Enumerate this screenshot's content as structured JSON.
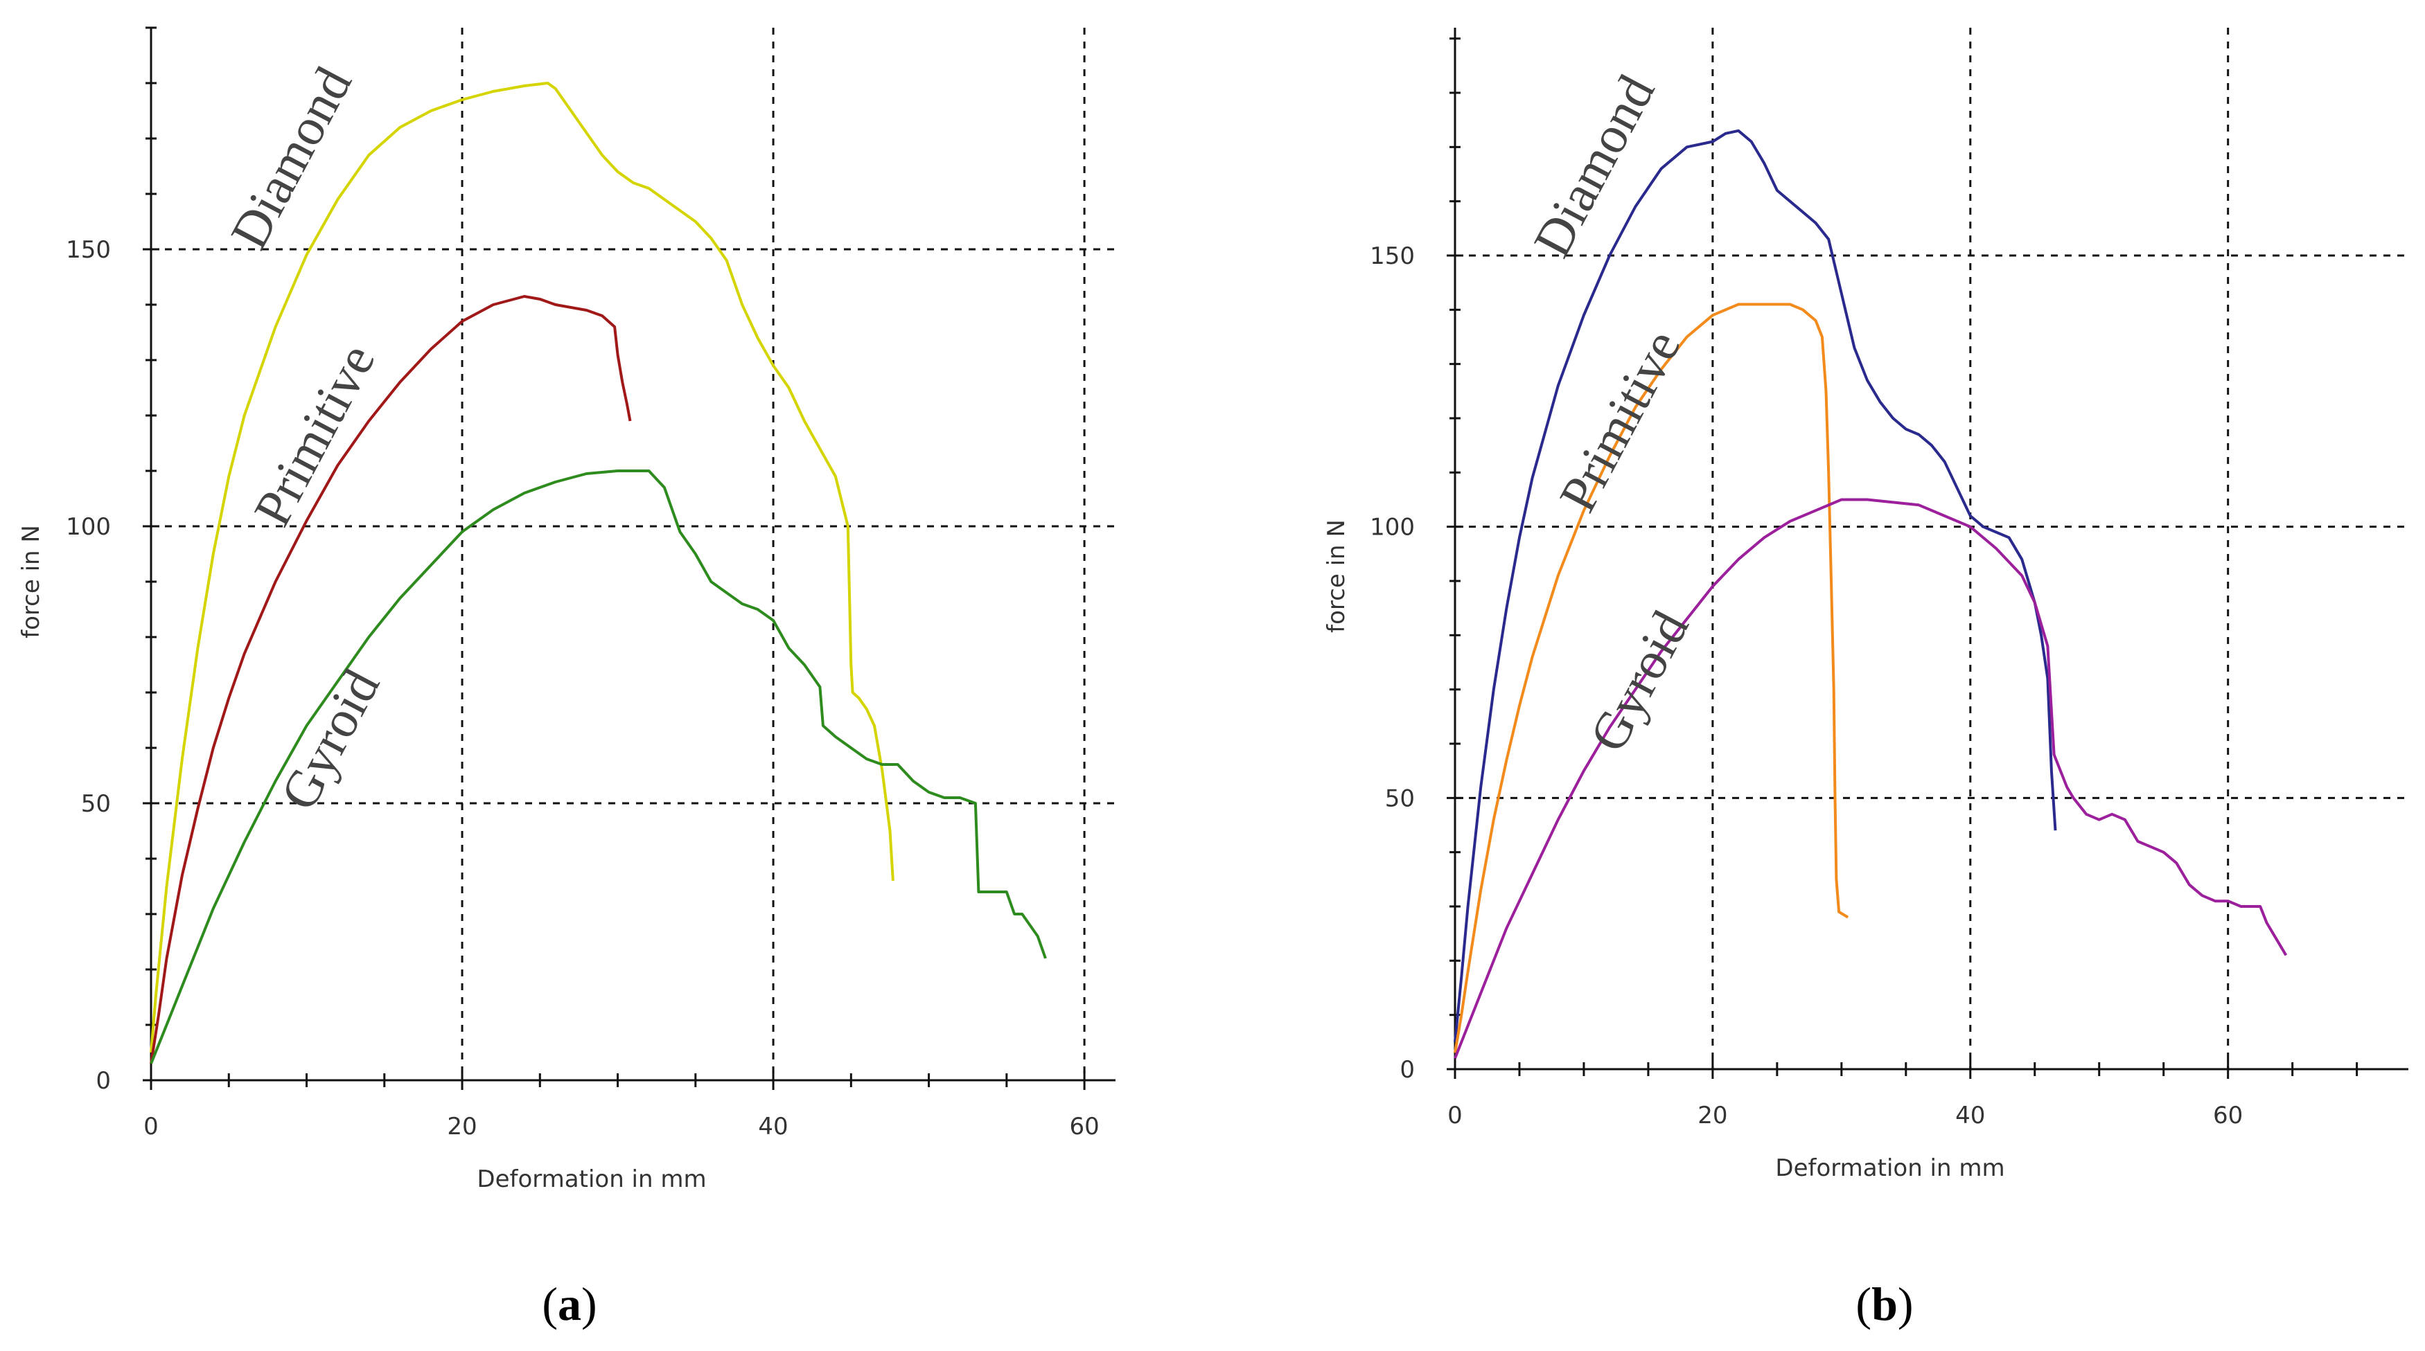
{
  "chart_data": [
    {
      "type": "line",
      "panel": "a",
      "caption_open": "(",
      "caption_letter": "a",
      "caption_close": ")",
      "xlabel": "Deformation in mm",
      "ylabel": "force in N",
      "xlim": [
        0,
        62
      ],
      "ylim": [
        0,
        190
      ],
      "xticks": [
        0,
        20,
        40,
        60
      ],
      "yticks": [
        0,
        50,
        100,
        150
      ],
      "grid": true,
      "series": [
        {
          "name": "Diamond",
          "color": "#d4d400",
          "x": [
            0,
            0.3,
            1,
            2,
            3,
            4,
            5,
            6,
            8,
            10,
            12,
            14,
            16,
            18,
            20,
            22,
            24,
            25.5,
            26,
            27,
            28,
            29,
            30,
            31,
            32,
            33,
            34,
            35,
            36,
            37,
            38,
            39,
            40,
            41,
            42,
            43,
            44,
            44.8,
            45,
            45.1,
            45.5,
            46,
            46.5,
            47,
            47.5,
            47.7
          ],
          "y": [
            5,
            15,
            35,
            58,
            78,
            95,
            109,
            120,
            136,
            149,
            159,
            167,
            172,
            175,
            177,
            178.5,
            179.5,
            180,
            179,
            175,
            171,
            167,
            164,
            162,
            161,
            159,
            157,
            155,
            152,
            148,
            140,
            134,
            129,
            125,
            119,
            114,
            109,
            100,
            75,
            70,
            69,
            67,
            64,
            56,
            45,
            36
          ],
          "label_x": 10,
          "label_y": 165
        },
        {
          "name": "Primitive",
          "color": "#a01818",
          "x": [
            0,
            0.5,
            1,
            2,
            3,
            4,
            5,
            6,
            8,
            10,
            12,
            14,
            16,
            18,
            20,
            22,
            24,
            25,
            26,
            27,
            28,
            29,
            29.8,
            30,
            30.3,
            30.6,
            30.8
          ],
          "y": [
            3,
            12,
            22,
            37,
            49,
            60,
            69,
            77,
            90,
            101,
            111,
            119,
            126,
            132,
            137,
            140,
            141.5,
            141,
            140,
            139.5,
            139,
            138,
            136,
            131,
            126,
            122,
            119
          ],
          "label_x": 11.5,
          "label_y": 115
        },
        {
          "name": "Gyroid",
          "color": "#2e8b1e",
          "x": [
            0,
            1,
            2,
            3,
            4,
            5,
            6,
            8,
            10,
            12,
            14,
            16,
            18,
            20,
            22,
            24,
            26,
            28,
            30,
            32,
            33,
            34,
            35,
            36,
            37,
            38,
            39,
            40,
            41,
            42,
            43,
            43.2,
            44,
            45,
            46,
            47,
            48,
            49,
            50,
            51,
            52,
            53,
            53.2,
            53.5,
            54,
            55,
            55.5,
            56,
            56.5,
            57,
            57.5
          ],
          "y": [
            3,
            10,
            17,
            24,
            31,
            37,
            43,
            54,
            64,
            72,
            80,
            87,
            93,
            99,
            103,
            106,
            108,
            109.5,
            110,
            110,
            107,
            99,
            95,
            90,
            88,
            86,
            85,
            83,
            78,
            75,
            71,
            64,
            62,
            60,
            58,
            57,
            57,
            54,
            52,
            51,
            51,
            50,
            34,
            34,
            34,
            34,
            30,
            30,
            28,
            26,
            22
          ],
          "label_x": 12.5,
          "label_y": 60
        }
      ]
    },
    {
      "type": "line",
      "panel": "b",
      "caption_open": "(",
      "caption_letter": "b",
      "caption_close": ")",
      "xlabel": "Deformation in mm",
      "ylabel": "force in N",
      "xlim": [
        0,
        74
      ],
      "ylim": [
        0,
        192
      ],
      "xticks": [
        0,
        20,
        40,
        60
      ],
      "yticks": [
        0,
        50,
        100,
        150
      ],
      "grid": true,
      "series": [
        {
          "name": "Diamond",
          "color": "#2a2a8e",
          "x": [
            0,
            0.5,
            1,
            2,
            3,
            4,
            5,
            6,
            8,
            10,
            12,
            14,
            16,
            18,
            20,
            21,
            22,
            23,
            24,
            25,
            26,
            27,
            28,
            29,
            30,
            31,
            32,
            33,
            34,
            35,
            36,
            37,
            38,
            39,
            40,
            41,
            42,
            43,
            44,
            45,
            45.5,
            46,
            46.3,
            46.6
          ],
          "y": [
            5,
            17,
            30,
            52,
            70,
            85,
            98,
            109,
            126,
            139,
            150,
            159,
            166,
            170,
            171,
            172.5,
            173,
            171,
            167,
            162,
            160,
            158,
            156,
            153,
            143,
            133,
            127,
            123,
            120,
            118,
            117,
            115,
            112,
            107,
            102,
            100,
            99,
            98,
            94,
            86,
            80,
            72,
            55,
            44
          ],
          "label_x": 12,
          "label_y": 165
        },
        {
          "name": "Primitive",
          "color": "#f28a1c",
          "x": [
            0,
            0.5,
            1,
            2,
            3,
            4,
            5,
            6,
            8,
            10,
            12,
            14,
            16,
            18,
            20,
            22,
            24,
            26,
            27,
            28,
            28.5,
            28.8,
            29,
            29.2,
            29.4,
            29.5,
            29.6,
            29.8,
            30.5
          ],
          "y": [
            3,
            10,
            18,
            33,
            46,
            57,
            67,
            76,
            91,
            103,
            113,
            122,
            129,
            135,
            139,
            141,
            141,
            141,
            140,
            138,
            135,
            125,
            110,
            90,
            70,
            50,
            35,
            29,
            28
          ],
          "label_x": 14,
          "label_y": 118
        },
        {
          "name": "Gyroid",
          "color": "#9c1f9c",
          "x": [
            0,
            1,
            2,
            3,
            4,
            5,
            6,
            8,
            10,
            12,
            14,
            16,
            18,
            20,
            22,
            24,
            26,
            28,
            30,
            32,
            34,
            36,
            38,
            40,
            42,
            44,
            45,
            46,
            46.5,
            47,
            47.5,
            48,
            49,
            50,
            51,
            52,
            53,
            54,
            55,
            56,
            57,
            58,
            59,
            60,
            61,
            62,
            62.5,
            63,
            63.5,
            64,
            64.5
          ],
          "y": [
            2,
            8,
            14,
            20,
            26,
            31,
            36,
            46,
            55,
            63,
            70,
            77,
            83,
            89,
            94,
            98,
            101,
            103,
            105,
            105,
            104.5,
            104,
            102,
            100,
            96,
            91,
            86,
            78,
            58,
            55,
            52,
            50,
            47,
            46,
            47,
            46,
            42,
            41,
            40,
            38,
            34,
            32,
            31,
            31,
            30,
            30,
            30,
            27,
            25,
            23,
            21
          ],
          "label_x": 15.5,
          "label_y": 70
        }
      ]
    }
  ]
}
